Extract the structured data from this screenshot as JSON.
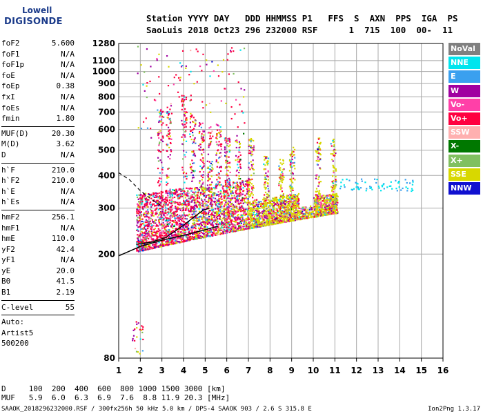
{
  "logo": {
    "line1": "Lowell",
    "line2": "DIGISONDE"
  },
  "header": {
    "line1": "Station YYYY DAY   DDD HHMMSS P1   FFS  S  AXN  PPS  IGA  PS",
    "line2": "SaoLuis 2018 Oct23 296 232000 RSF      1  715  100  00-  11"
  },
  "params": [
    {
      "name": "foF2",
      "value": "5.600"
    },
    {
      "name": "foF1",
      "value": "N/A"
    },
    {
      "name": "foF1p",
      "value": "N/A"
    },
    {
      "name": "foE",
      "value": "N/A"
    },
    {
      "name": "foEp",
      "value": "0.38"
    },
    {
      "name": "fxI",
      "value": "N/A"
    },
    {
      "name": "foEs",
      "value": "N/A"
    },
    {
      "name": "fmin",
      "value": "1.80"
    },
    {
      "sep": true
    },
    {
      "name": "MUF(D)",
      "value": "20.30"
    },
    {
      "name": "M(D)",
      "value": "3.62"
    },
    {
      "name": "D",
      "value": "N/A"
    },
    {
      "sep": true
    },
    {
      "name": "h`F",
      "value": "210.0"
    },
    {
      "name": "h`F2",
      "value": "210.0"
    },
    {
      "name": "h`E",
      "value": "N/A"
    },
    {
      "name": "h`Es",
      "value": "N/A"
    },
    {
      "sep": true
    },
    {
      "name": "hmF2",
      "value": "256.1"
    },
    {
      "name": "hmF1",
      "value": "N/A"
    },
    {
      "name": "hmE",
      "value": "110.0"
    },
    {
      "name": "yF2",
      "value": "42.4"
    },
    {
      "name": "yF1",
      "value": "N/A"
    },
    {
      "name": "yE",
      "value": "20.0"
    },
    {
      "name": "B0",
      "value": "41.5"
    },
    {
      "name": "B1",
      "value": "2.19"
    },
    {
      "sep": true
    },
    {
      "name": "C-level",
      "value": "55"
    },
    {
      "sep": true
    },
    {
      "text": "Auto:"
    },
    {
      "text": "Artist5"
    },
    {
      "text": "500200"
    }
  ],
  "legend": [
    {
      "label": "NoVal",
      "bg": "#808080",
      "fg": "#ffffff"
    },
    {
      "label": "NNE",
      "bg": "#00e5ee",
      "fg": "#ffffff"
    },
    {
      "label": "E",
      "bg": "#3aa0ef",
      "fg": "#ffffff"
    },
    {
      "label": "W",
      "bg": "#a000a0",
      "fg": "#ffffff"
    },
    {
      "label": "Vo-",
      "bg": "#ff40a8",
      "fg": "#ffffff"
    },
    {
      "label": "Vo+",
      "bg": "#ff0040",
      "fg": "#ffffff"
    },
    {
      "label": "SSW",
      "bg": "#ffb0b0",
      "fg": "#ffffff"
    },
    {
      "label": "X-",
      "bg": "#007800",
      "fg": "#ffffff"
    },
    {
      "label": "X+",
      "bg": "#80c060",
      "fg": "#ffffff"
    },
    {
      "label": "SSE",
      "bg": "#d8d800",
      "fg": "#ffffff"
    },
    {
      "label": "NNW",
      "bg": "#1010d0",
      "fg": "#ffffff"
    }
  ],
  "footer": {
    "line1": "D     100  200  400  600  800 1000 1500 3000 [km]",
    "line2": "MUF   5.9  6.0  6.3  6.9  7.6  8.8 11.9 20.3 [MHz]",
    "file": "SAAOK_2018296232000.RSF / 300fx256h 50 kHz 5.0 km / DPS-4 SAAOK 903 / 2.6 S 315.8 E",
    "version": "Ion2Png 1.3.17"
  },
  "chart_data": {
    "type": "scatter",
    "x_ticks": [
      "1",
      "2",
      "3",
      "4",
      "5",
      "6",
      "7",
      "8",
      "9",
      "10",
      "11",
      "12",
      "13",
      "14",
      "15",
      "16"
    ],
    "y_ticks": [
      "80",
      "200",
      "300",
      "400",
      "500",
      "600",
      "700",
      "800",
      "900",
      "1000",
      "1100",
      "1280"
    ],
    "xlim": [
      1,
      16
    ],
    "ylim": [
      80,
      1280
    ],
    "y_scale": "log",
    "grid": true,
    "trace_o_ray": [
      [
        1.0,
        197
      ],
      [
        2.0,
        214
      ],
      [
        3.0,
        226
      ],
      [
        4.0,
        236
      ],
      [
        5.0,
        248
      ],
      [
        5.6,
        256
      ]
    ],
    "trace_dashed": [
      [
        1.0,
        410
      ],
      [
        1.5,
        385
      ],
      [
        2.0,
        350
      ],
      [
        2.5,
        325
      ],
      [
        3.0,
        305
      ]
    ],
    "profile_curve": [
      [
        1.8,
        218
      ],
      [
        2.5,
        222
      ],
      [
        3.2,
        232
      ],
      [
        4.0,
        258
      ],
      [
        4.5,
        278
      ],
      [
        4.9,
        294
      ],
      [
        5.2,
        300
      ]
    ],
    "echo_region": {
      "x_from": 1.8,
      "x_to": 11.5,
      "h_from": 210,
      "h_to": 620
    }
  }
}
